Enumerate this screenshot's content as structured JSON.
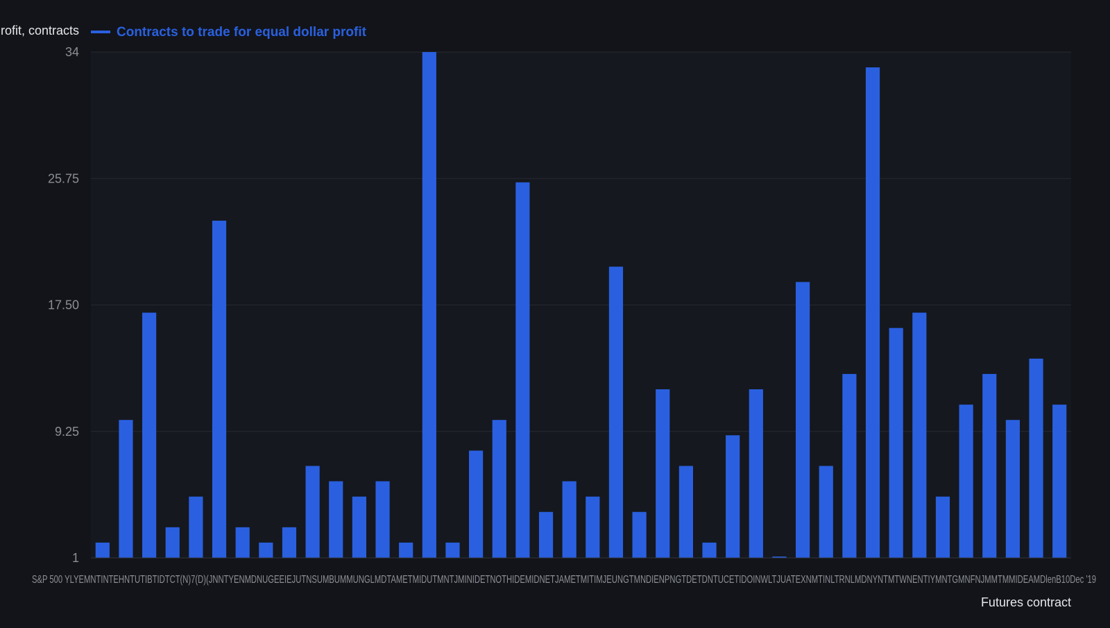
{
  "chart_data": {
    "type": "bar",
    "ylabel": "rofit, contracts",
    "xlabel": "Futures contract",
    "legend": {
      "label": "Contracts to trade for equal dollar profit",
      "placement": "top-left",
      "color": "#2a60e0"
    },
    "ylim": [
      1,
      34
    ],
    "yticks": [
      "1",
      "9.25",
      "17.50",
      "25.75",
      "34"
    ],
    "grid": true,
    "series": [
      {
        "values": [
          2,
          10,
          17,
          3,
          5,
          23,
          3,
          2,
          3,
          7,
          6,
          5,
          6,
          2,
          34,
          2,
          8,
          10,
          25.5,
          4,
          6,
          5,
          20,
          4,
          12,
          7,
          2,
          9,
          12,
          0.9,
          19,
          7,
          13,
          33,
          16,
          17,
          5,
          11,
          13,
          10,
          14,
          11
        ],
        "color": "#2a60e0"
      }
    ],
    "tick_label_text": "S&P 500 YLYEMNTINTEHNTUTIBTIDTCT(N)7(D)(JNNTYENMDNUGEEIEJUTNSUMBUMMUNGLMDTAMETMIDUTMNTJMINIDETNOTHIDEMIDNETJAMETMITIMJEUNGTMNDIENPNGTDETDNTUCETIDOINWLTJUATEXNMTINLTRNLMDNYNTMTWNENTIYMNTGMNFNJMMTMMIDEAMDlenB10Dec '19"
  },
  "colors": {
    "background": "#121419",
    "bar": "#2a60e0",
    "grid": "#262a31",
    "axis_text": "#8c8f96",
    "title_text": "#e6e7ea"
  }
}
